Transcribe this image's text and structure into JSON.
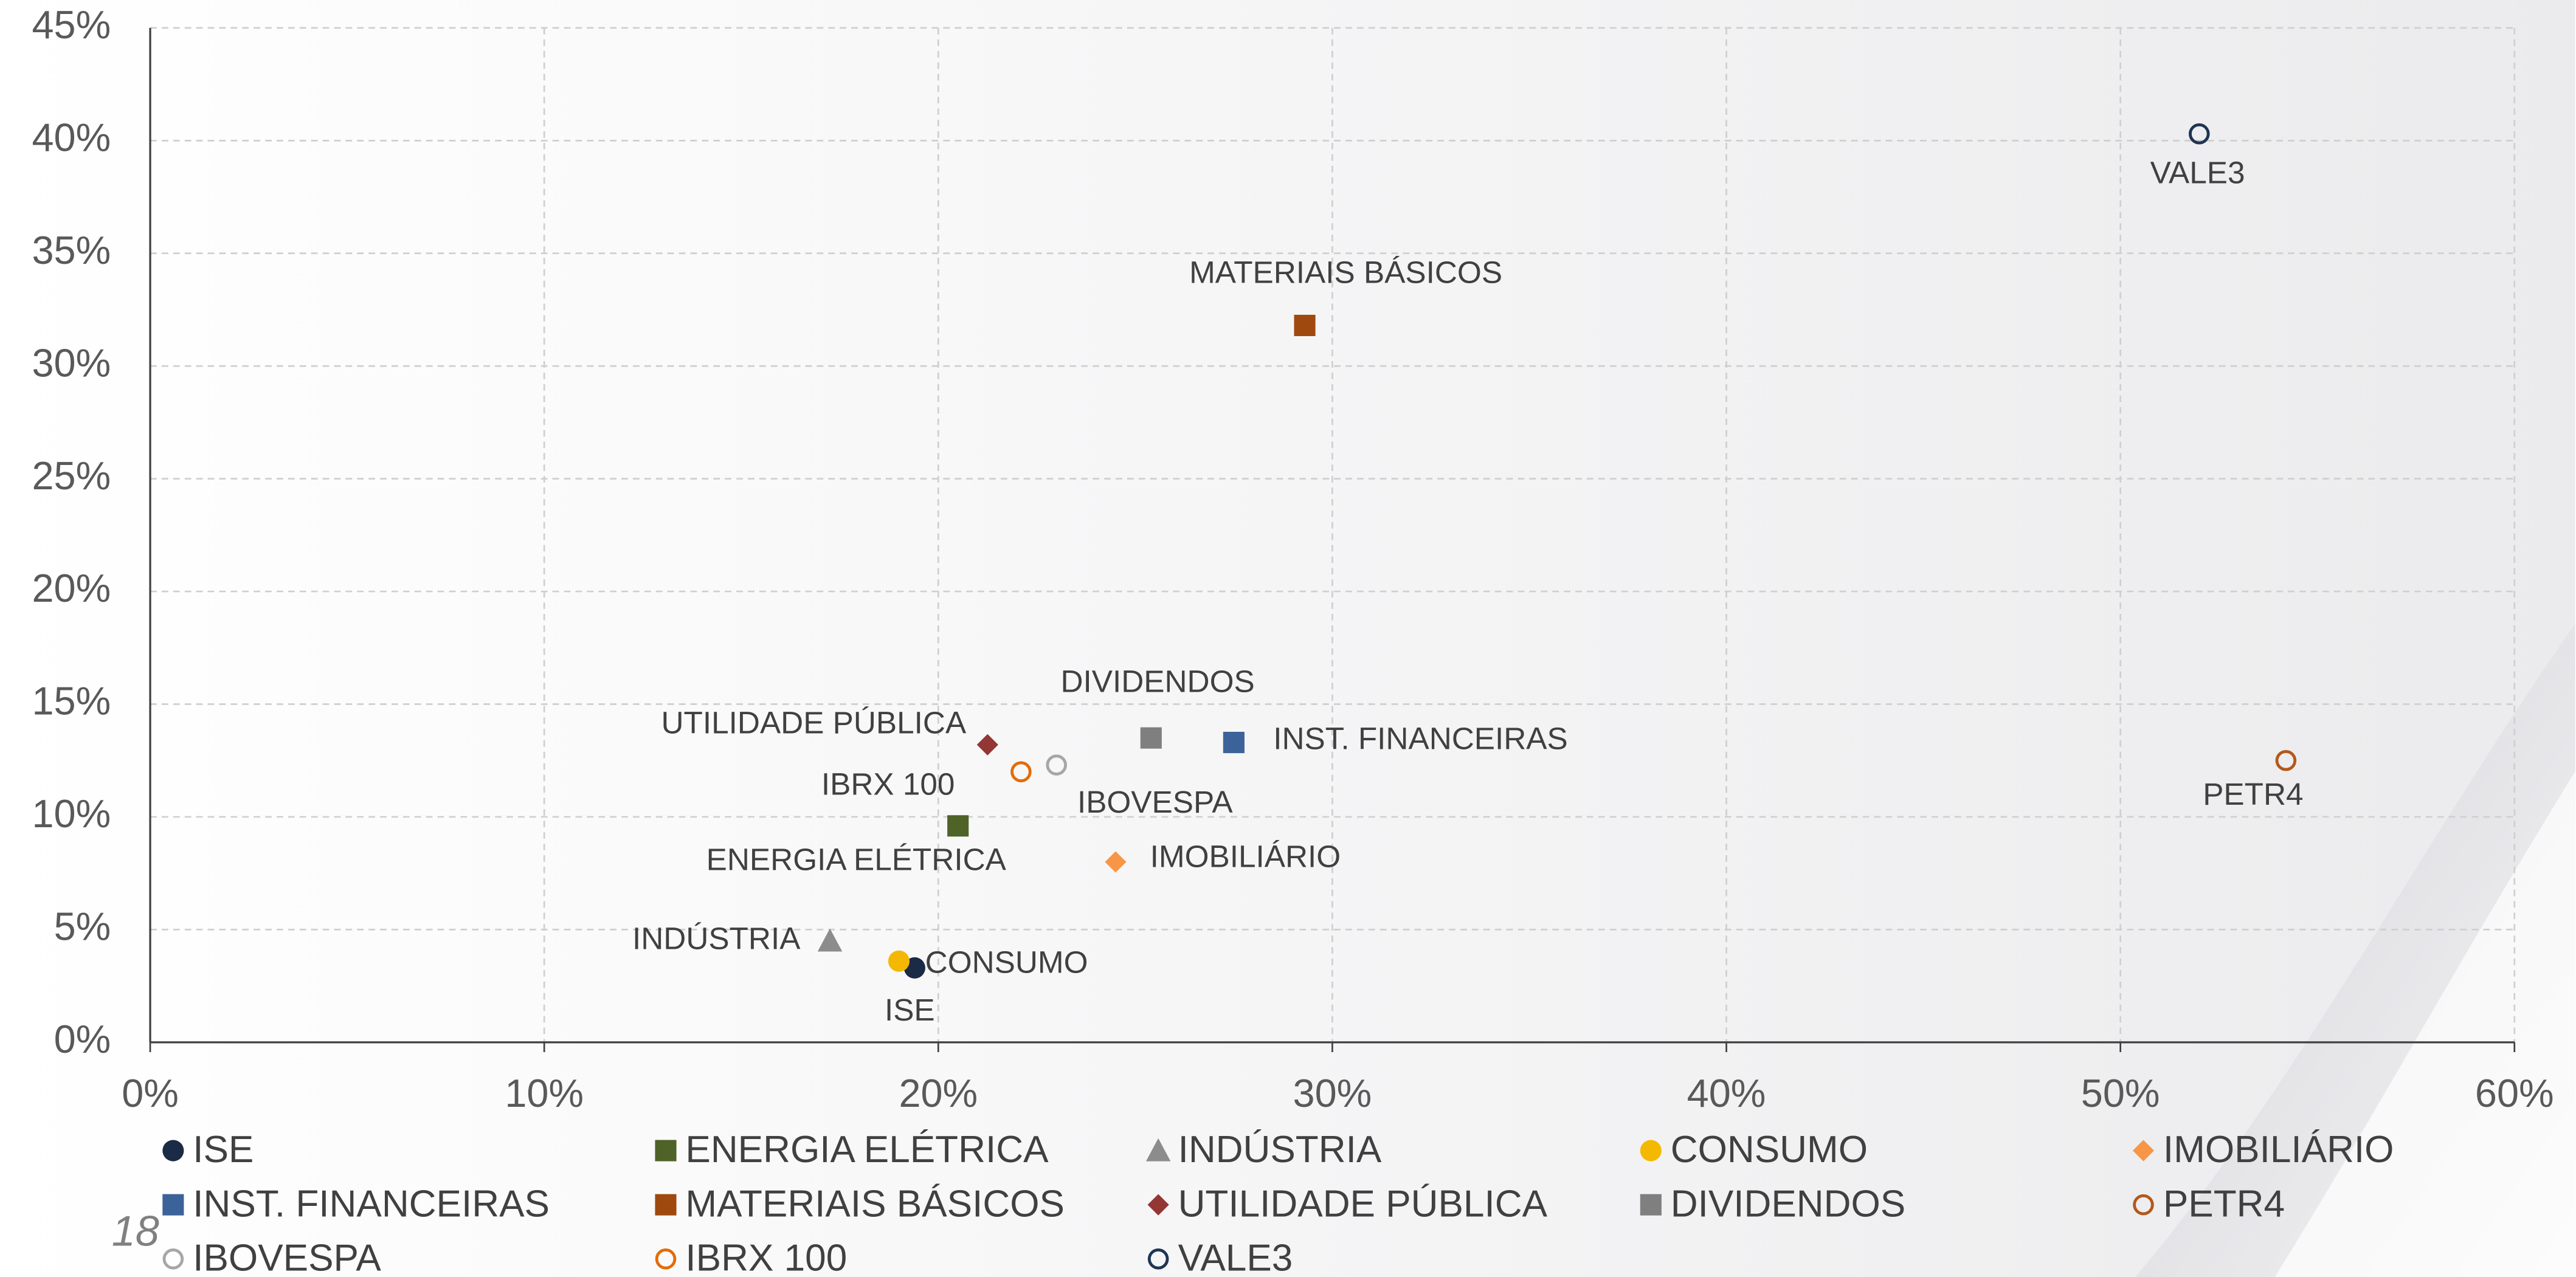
{
  "page_number": "18",
  "chart_data": {
    "type": "scatter",
    "xlim": [
      0,
      60
    ],
    "ylim": [
      0,
      45
    ],
    "xticks": [
      {
        "value": 0,
        "label": "0%"
      },
      {
        "value": 10,
        "label": "10%"
      },
      {
        "value": 20,
        "label": "20%"
      },
      {
        "value": 30,
        "label": "30%"
      },
      {
        "value": 40,
        "label": "40%"
      },
      {
        "value": 50,
        "label": "50%"
      },
      {
        "value": 60,
        "label": "60%"
      }
    ],
    "yticks": [
      {
        "value": 0,
        "label": "0%"
      },
      {
        "value": 5,
        "label": "5%"
      },
      {
        "value": 10,
        "label": "10%"
      },
      {
        "value": 15,
        "label": "15%"
      },
      {
        "value": 20,
        "label": "20%"
      },
      {
        "value": 25,
        "label": "25%"
      },
      {
        "value": 30,
        "label": "30%"
      },
      {
        "value": 35,
        "label": "35%"
      },
      {
        "value": 40,
        "label": "40%"
      },
      {
        "value": 45,
        "label": "45%"
      }
    ],
    "grid": true,
    "legend": "bottom",
    "series": [
      {
        "name": "ISE",
        "color": "#1b2a45",
        "marker": "circle",
        "filled": true,
        "x": [
          19.4
        ],
        "values": [
          3.3
        ]
      },
      {
        "name": "ENERGIA ELÉTRICA",
        "color": "#4f6228",
        "marker": "square",
        "filled": true,
        "x": [
          20.5
        ],
        "values": [
          9.6
        ]
      },
      {
        "name": "INDÚSTRIA",
        "color": "#8c8c8c",
        "marker": "triangle",
        "filled": true,
        "x": [
          17.25
        ],
        "values": [
          4.5
        ]
      },
      {
        "name": "CONSUMO",
        "color": "#f5b800",
        "marker": "circle",
        "filled": true,
        "x": [
          19.0
        ],
        "values": [
          3.6
        ]
      },
      {
        "name": "IMOBILIÁRIO",
        "color": "#f79646",
        "marker": "diamond",
        "filled": true,
        "x": [
          24.5
        ],
        "values": [
          8.0
        ]
      },
      {
        "name": "INST. FINANCEIRAS",
        "color": "#3c6399",
        "marker": "square",
        "filled": true,
        "x": [
          27.5
        ],
        "values": [
          13.3
        ]
      },
      {
        "name": "MATERIAIS BÁSICOS",
        "color": "#a0490e",
        "marker": "square",
        "filled": true,
        "x": [
          29.3
        ],
        "values": [
          31.8
        ]
      },
      {
        "name": "UTILIDADE PÚBLICA",
        "color": "#943634",
        "marker": "diamond",
        "filled": true,
        "x": [
          21.25
        ],
        "values": [
          13.2
        ]
      },
      {
        "name": "DIVIDENDOS",
        "color": "#7f7f7f",
        "marker": "square",
        "filled": true,
        "x": [
          25.4
        ],
        "values": [
          13.5
        ]
      },
      {
        "name": "PETR4",
        "color": "#b4581c",
        "marker": "circle",
        "filled": false,
        "x": [
          54.2
        ],
        "values": [
          12.5
        ]
      },
      {
        "name": "IBOVESPA",
        "color": "#a6a6a6",
        "marker": "circle",
        "filled": false,
        "x": [
          23.0
        ],
        "values": [
          12.3
        ]
      },
      {
        "name": "IBRX 100",
        "color": "#e36c09",
        "marker": "circle",
        "filled": false,
        "x": [
          22.1
        ],
        "values": [
          12.0
        ]
      },
      {
        "name": "VALE3",
        "color": "#1f3552",
        "marker": "circle",
        "filled": false,
        "x": [
          52.0
        ],
        "values": [
          40.3
        ]
      }
    ]
  }
}
